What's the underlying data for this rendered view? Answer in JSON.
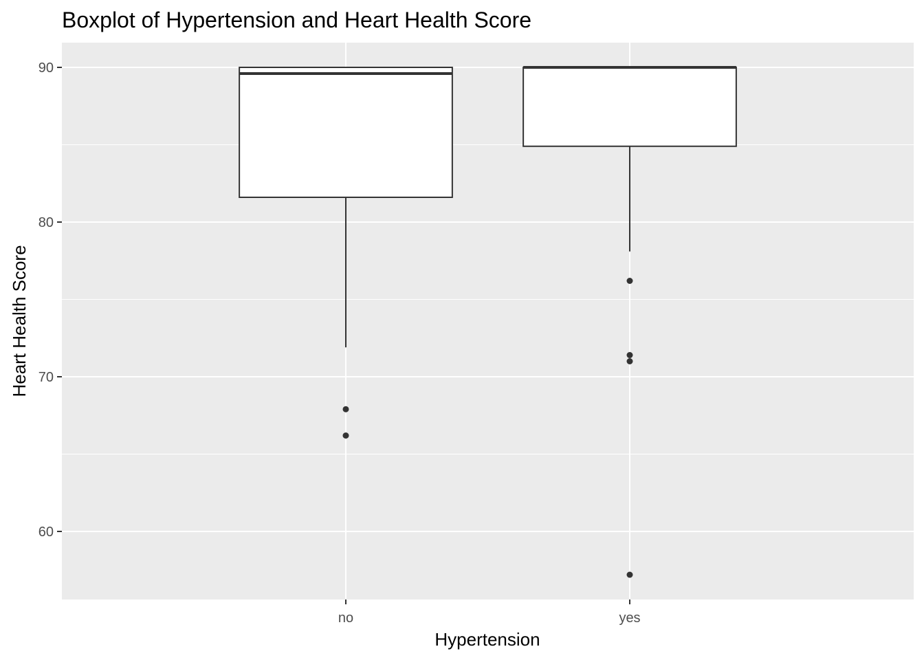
{
  "chart_data": {
    "type": "boxplot",
    "title": "Boxplot of Hypertension and Heart Health Score",
    "xlabel": "Hypertension",
    "ylabel": "Heart Health Score",
    "categories": [
      "no",
      "yes"
    ],
    "ylim": [
      55.6,
      91.6
    ],
    "y_major_ticks": [
      60,
      70,
      80,
      90
    ],
    "y_minor_ticks": [
      65,
      75,
      85
    ],
    "y_tick_labels": [
      "60",
      "70",
      "80",
      "90"
    ],
    "grid": true,
    "panel_background": "#ebebeb",
    "grid_color": "#ffffff",
    "box_fill": "#ffffff",
    "line_color": "#333333",
    "boxes": [
      {
        "category": "no",
        "whisker_low": 71.9,
        "q1": 81.6,
        "median": 89.6,
        "q3": 90.0,
        "whisker_high": 90.0,
        "outliers": [
          67.9,
          66.2
        ]
      },
      {
        "category": "yes",
        "whisker_low": 78.1,
        "q1": 84.9,
        "median": 90.0,
        "q3": 90.0,
        "whisker_high": 90.0,
        "outliers": [
          76.2,
          71.4,
          71.0,
          57.2
        ]
      }
    ]
  }
}
